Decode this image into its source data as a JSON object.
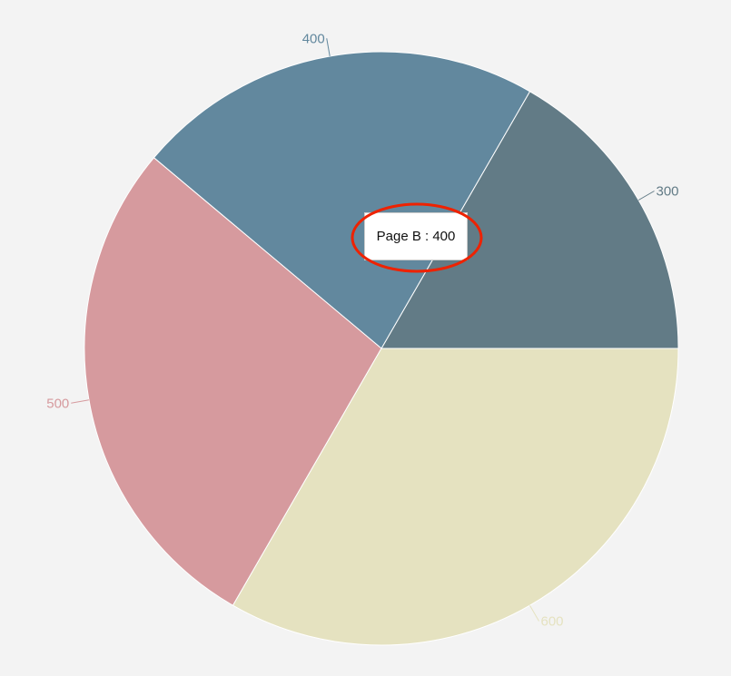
{
  "chart_data": {
    "type": "pie",
    "values": [
      300,
      400,
      500,
      600
    ],
    "colors": [
      "#627b86",
      "#62889e",
      "#d69a9e",
      "#e5e2c0"
    ],
    "start_angle_deg": 0,
    "direction": "counterclockwise",
    "data_labels": [
      "300",
      "400",
      "500",
      "600"
    ]
  },
  "tooltip": {
    "text": "Page B : 400",
    "highlight_color": "#ee2200"
  }
}
